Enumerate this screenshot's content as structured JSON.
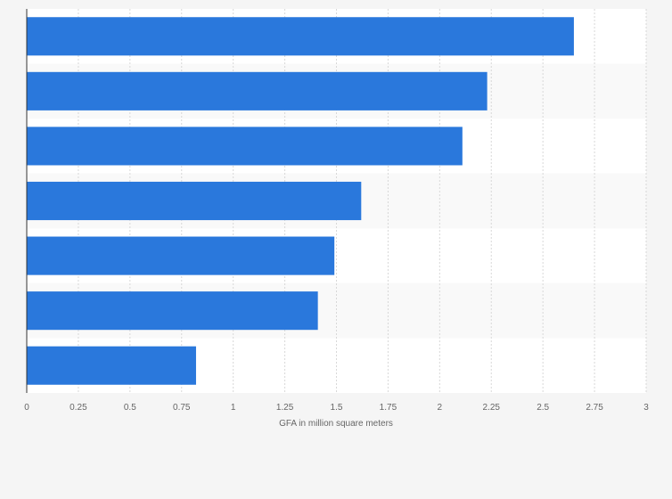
{
  "chart_data": {
    "type": "bar",
    "orientation": "horizontal",
    "categories": [
      "",
      "",
      "",
      "",
      "",
      "",
      ""
    ],
    "values": [
      2.65,
      2.23,
      2.11,
      1.62,
      1.49,
      1.41,
      0.82
    ],
    "xlabel": "GFA in million square meters",
    "ylabel": "",
    "xlim": [
      0,
      3
    ],
    "ticks": [
      0,
      0.25,
      0.5,
      0.75,
      1,
      1.25,
      1.5,
      1.75,
      2,
      2.25,
      2.5,
      2.75,
      3
    ],
    "tick_labels": [
      "0",
      "0.25",
      "0.5",
      "0.75",
      "1",
      "1.25",
      "1.5",
      "1.75",
      "2",
      "2.25",
      "2.5",
      "2.75",
      "3"
    ],
    "grid": true,
    "bar_color": "#2a78dc"
  }
}
